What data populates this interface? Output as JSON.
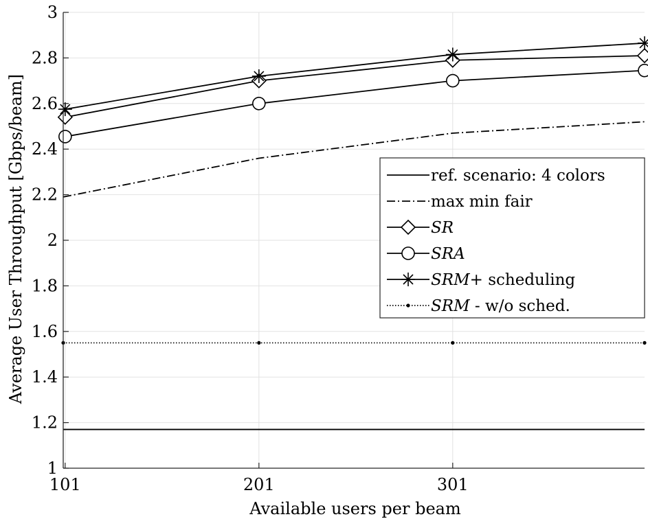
{
  "chart_data": {
    "type": "line",
    "xlabel": "Available users per beam",
    "ylabel": "Average User Throughput [Gbps/beam]",
    "xlim": [
      100,
      400
    ],
    "ylim": [
      1,
      3
    ],
    "xticks": [
      101,
      201,
      301
    ],
    "yticks": [
      1,
      1.2,
      1.4,
      1.6,
      1.8,
      2,
      2.2,
      2.4,
      2.6,
      2.8,
      3
    ],
    "grid": true,
    "legend_position": "right",
    "series": [
      {
        "name": "ref. scenario: 4 colors",
        "style": "solid",
        "marker": "none",
        "x": [
          100,
          400
        ],
        "y": [
          1.17,
          1.17
        ]
      },
      {
        "name": "max min fair",
        "style": "dashdot",
        "marker": "none",
        "x": [
          100,
          201,
          301,
          400
        ],
        "y": [
          2.19,
          2.36,
          2.47,
          2.52
        ]
      },
      {
        "name": "SR",
        "style": "solid",
        "marker": "diamond",
        "x": [
          101,
          201,
          301,
          400
        ],
        "y": [
          2.54,
          2.7,
          2.79,
          2.81
        ]
      },
      {
        "name": "SRA",
        "style": "solid",
        "marker": "circle",
        "x": [
          101,
          201,
          301,
          400
        ],
        "y": [
          2.455,
          2.6,
          2.7,
          2.745
        ]
      },
      {
        "name": "SRM+ scheduling",
        "style": "solid",
        "marker": "asterisk",
        "x": [
          101,
          201,
          301,
          400
        ],
        "y": [
          2.575,
          2.72,
          2.815,
          2.865
        ]
      },
      {
        "name": "SRM - w/o sched.",
        "style": "dotted",
        "marker": "dot",
        "x": [
          100,
          201,
          301,
          400
        ],
        "y": [
          1.55,
          1.55,
          1.55,
          1.55
        ]
      }
    ]
  },
  "legend": [
    {
      "key": "ref",
      "prefix": "",
      "label": "ref. scenario: 4 colors",
      "suffix": ""
    },
    {
      "key": "mmf",
      "prefix": "",
      "label": "max min fair",
      "suffix": ""
    },
    {
      "key": "sr",
      "prefix": "",
      "label": "SR",
      "suffix": ""
    },
    {
      "key": "sra",
      "prefix": "",
      "label": "SRA",
      "suffix": ""
    },
    {
      "key": "srm",
      "prefix": "",
      "label": "SRM",
      "suffix": "+ scheduling"
    },
    {
      "key": "srmw",
      "prefix": "",
      "label": "SRM",
      "suffix": " - w/o sched."
    }
  ]
}
